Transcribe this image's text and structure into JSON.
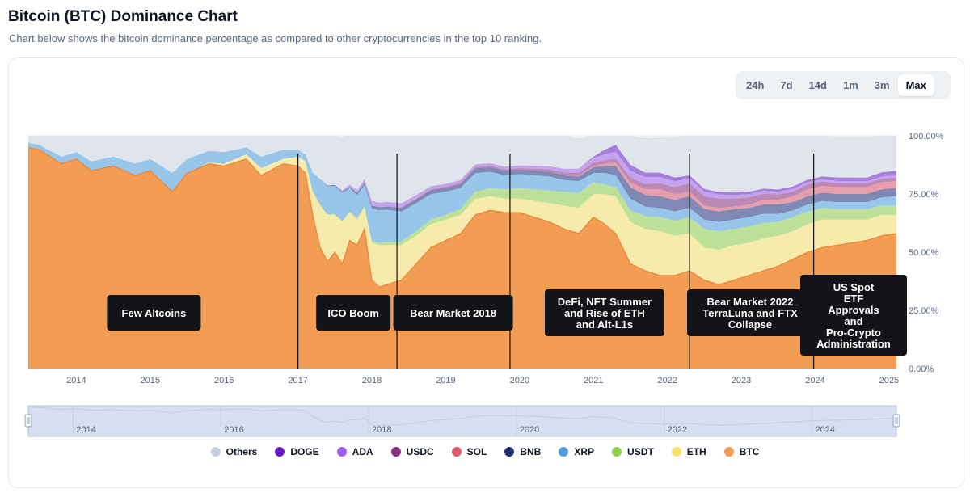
{
  "header": {
    "title": "Bitcoin (BTC) Dominance Chart",
    "subtitle": "Chart below shows the bitcoin dominance percentage as compared to other cryptocurrencies in the top 10 ranking."
  },
  "range_buttons": [
    {
      "label": "24h",
      "active": false
    },
    {
      "label": "7d",
      "active": false
    },
    {
      "label": "14d",
      "active": false
    },
    {
      "label": "1m",
      "active": false
    },
    {
      "label": "3m",
      "active": false
    },
    {
      "label": "Max",
      "active": true
    }
  ],
  "colors": {
    "Others": "#c7d0dc",
    "DOGE": "#6a1bc4",
    "ADA": "#a15fe8",
    "USDC": "#8e2f7e",
    "SOL": "#dc5a6c",
    "BNB": "#1f2f7a",
    "XRP": "#4c9ee0",
    "USDT": "#8fcf4a",
    "ETH": "#f7e16a",
    "BTC": "#f39c53"
  },
  "legend": [
    "Others",
    "DOGE",
    "ADA",
    "USDC",
    "SOL",
    "BNB",
    "XRP",
    "USDT",
    "ETH",
    "BTC"
  ],
  "navigator": {
    "labels": [
      "2014",
      "2016",
      "2018",
      "2020",
      "2022",
      "2024"
    ]
  },
  "chart_data": {
    "type": "area",
    "title": "Bitcoin (BTC) Dominance Chart",
    "stacked": true,
    "x_range": [
      2013.35,
      2025.1
    ],
    "ylim": [
      0,
      100
    ],
    "y_ticks": [
      "0.00%",
      "25.00%",
      "50.00%",
      "75.00%",
      "100.00%"
    ],
    "y_tick_values": [
      0,
      25,
      50,
      75,
      100
    ],
    "x_ticks": [
      "2014",
      "2015",
      "2016",
      "2017",
      "2018",
      "2019",
      "2020",
      "2021",
      "2022",
      "2023",
      "2024",
      "2025"
    ],
    "x_tick_values": [
      2014,
      2015,
      2016,
      2017,
      2018,
      2019,
      2020,
      2021,
      2022,
      2023,
      2024,
      2025
    ],
    "x": [
      2013.35,
      2013.5,
      2013.8,
      2014.0,
      2014.2,
      2014.5,
      2014.8,
      2015.0,
      2015.3,
      2015.5,
      2015.8,
      2016.0,
      2016.3,
      2016.5,
      2016.8,
      2017.0,
      2017.1,
      2017.2,
      2017.3,
      2017.4,
      2017.5,
      2017.6,
      2017.7,
      2017.8,
      2017.9,
      2018.0,
      2018.1,
      2018.2,
      2018.4,
      2018.6,
      2018.8,
      2019.0,
      2019.2,
      2019.4,
      2019.6,
      2019.8,
      2020.0,
      2020.2,
      2020.4,
      2020.6,
      2020.8,
      2021.0,
      2021.15,
      2021.3,
      2021.5,
      2021.7,
      2021.9,
      2022.1,
      2022.3,
      2022.5,
      2022.7,
      2022.9,
      2023.1,
      2023.3,
      2023.5,
      2023.7,
      2023.9,
      2024.1,
      2024.3,
      2024.5,
      2024.7,
      2024.9,
      2025.1
    ],
    "series": [
      {
        "name": "BTC",
        "values": [
          95,
          94,
          88,
          90,
          85,
          87,
          83,
          85,
          76,
          84,
          88,
          87,
          90,
          83,
          88,
          87,
          84,
          66,
          52,
          46,
          50,
          45,
          55,
          53,
          60,
          38,
          35,
          36,
          38,
          45,
          52,
          55,
          58,
          66,
          68,
          67,
          67,
          65,
          63,
          60,
          58,
          65,
          62,
          58,
          45,
          42,
          40,
          40,
          42,
          38,
          36,
          38,
          40,
          42,
          44,
          47,
          50,
          52,
          53,
          54,
          55,
          57,
          58
        ]
      },
      {
        "name": "ETH",
        "values": [
          0,
          0,
          0,
          0,
          0,
          0,
          0,
          0,
          0,
          0,
          0.5,
          1,
          2,
          3,
          2,
          4,
          5,
          10,
          18,
          20,
          16,
          18,
          12,
          11,
          9,
          16,
          18,
          17,
          15,
          12,
          10,
          9,
          8,
          7,
          6,
          6,
          6,
          7,
          8,
          10,
          11,
          10,
          13,
          16,
          18,
          18,
          19,
          17,
          16,
          14,
          15,
          15,
          14,
          14,
          13,
          12,
          12,
          12,
          11,
          10,
          9,
          9,
          8
        ]
      },
      {
        "name": "USDT",
        "values": [
          0,
          0,
          0,
          0,
          0,
          0,
          0,
          0,
          0,
          0,
          0,
          0,
          0,
          0,
          0,
          0,
          0,
          0.2,
          0.3,
          0.3,
          0.4,
          0.5,
          0.5,
          0.6,
          0.8,
          0.8,
          1,
          1.2,
          1.5,
          2,
          2,
          2,
          2.5,
          3,
          3.5,
          4,
          4.5,
          5,
          5.5,
          6,
          6.5,
          5,
          4,
          4,
          5,
          5.5,
          6,
          6.5,
          7,
          8,
          8,
          7,
          7,
          6.5,
          6,
          6,
          5.5,
          5,
          4.5,
          4.5,
          4.5,
          4,
          4
        ]
      },
      {
        "name": "XRP",
        "values": [
          2,
          2,
          3,
          3,
          4,
          4,
          5,
          5,
          8,
          6,
          5,
          5,
          3,
          5,
          4,
          3,
          3,
          8,
          11,
          12,
          12,
          12,
          10,
          10,
          9,
          14,
          14,
          14,
          13,
          12,
          11,
          10,
          9,
          8,
          7,
          6,
          6,
          6,
          6,
          5,
          5,
          4,
          5,
          5,
          5,
          4,
          4,
          4,
          4,
          4,
          4,
          4,
          4,
          4,
          3.5,
          3,
          3,
          3,
          3,
          3,
          3,
          3.5,
          4
        ]
      },
      {
        "name": "BNB",
        "values": [
          0,
          0,
          0,
          0,
          0,
          0,
          0,
          0,
          0,
          0,
          0,
          0,
          0,
          0,
          0,
          0,
          0,
          0,
          0,
          0.3,
          0.5,
          0.5,
          0.6,
          0.8,
          1,
          1.2,
          1.3,
          1.4,
          1.5,
          1.6,
          1.6,
          1.6,
          1.8,
          2,
          2,
          2,
          2,
          2,
          2,
          2,
          2,
          2.5,
          3,
          4,
          5,
          5,
          5,
          5,
          5,
          4.5,
          4.5,
          4.5,
          4,
          4,
          4,
          3.5,
          3.5,
          3.5,
          3.5,
          3.5,
          3.5,
          3.5,
          3.5
        ]
      },
      {
        "name": "SOL",
        "values": [
          0,
          0,
          0,
          0,
          0,
          0,
          0,
          0,
          0,
          0,
          0,
          0,
          0,
          0,
          0,
          0,
          0,
          0,
          0,
          0,
          0,
          0,
          0,
          0,
          0,
          0,
          0,
          0,
          0,
          0,
          0,
          0,
          0,
          0,
          0,
          0,
          0,
          0,
          0,
          0,
          0.2,
          0.5,
          1,
          1.5,
          2,
          2.5,
          3,
          2.5,
          2,
          1.5,
          1.5,
          1,
          1.5,
          2,
          2,
          2.5,
          3,
          3,
          3,
          3,
          3,
          3,
          3
        ]
      },
      {
        "name": "USDC",
        "values": [
          0,
          0,
          0,
          0,
          0,
          0,
          0,
          0,
          0,
          0,
          0,
          0,
          0,
          0,
          0,
          0,
          0,
          0,
          0,
          0,
          0,
          0,
          0,
          0,
          0,
          0,
          0,
          0,
          0.2,
          0.3,
          0.4,
          0.5,
          0.5,
          0.5,
          0.5,
          0.5,
          0.6,
          0.8,
          1,
          1.2,
          1.4,
          1.5,
          1.5,
          1.6,
          2,
          2.2,
          2.5,
          3,
          3.5,
          4,
          4,
          3.5,
          3,
          2.5,
          2.2,
          2,
          2,
          1.8,
          1.6,
          1.5,
          1.5,
          1.5,
          1.5
        ]
      },
      {
        "name": "ADA",
        "values": [
          0,
          0,
          0,
          0,
          0,
          0,
          0,
          0,
          0,
          0,
          0,
          0,
          0,
          0,
          0,
          0,
          0,
          0,
          0,
          0,
          0,
          0.5,
          1,
          1.2,
          1.5,
          2,
          2,
          2,
          1.8,
          1.6,
          1.4,
          1.2,
          1.2,
          1.2,
          1.2,
          1.2,
          1.2,
          1.3,
          1.4,
          1.6,
          1.8,
          2,
          2.5,
          3,
          3,
          3,
          2.8,
          2.5,
          2.2,
          2,
          1.8,
          1.6,
          1.4,
          1.3,
          1.2,
          1.2,
          1.1,
          1,
          1,
          1,
          1,
          1,
          1
        ]
      },
      {
        "name": "DOGE",
        "values": [
          0,
          0,
          0,
          0,
          0,
          0,
          0,
          0,
          0,
          0,
          0,
          0,
          0,
          0,
          0,
          0,
          0,
          0,
          0,
          0,
          0,
          0,
          0,
          0,
          0,
          0,
          0,
          0,
          0,
          0,
          0,
          0,
          0,
          0,
          0,
          0,
          0,
          0,
          0,
          0,
          0,
          0.5,
          2,
          3,
          2.5,
          2,
          1.8,
          1.5,
          1.3,
          1.2,
          1,
          1,
          1,
          1,
          1,
          1,
          1,
          1.2,
          1.5,
          1.5,
          1.5,
          1.8,
          2
        ]
      },
      {
        "name": "Others",
        "values": [
          3,
          4,
          9,
          7,
          11,
          9,
          12,
          10,
          16,
          10,
          6.5,
          7,
          5,
          9,
          6,
          6,
          8,
          15.8,
          18.7,
          21.4,
          21.1,
          23,
          20.9,
          23.4,
          18.7,
          28,
          28.7,
          28.4,
          30,
          25.5,
          22.6,
          20.7,
          20,
          12.3,
          11.8,
          13.3,
          12.7,
          12.9,
          13.1,
          14.2,
          13.1,
          9.5,
          6,
          3.9,
          12.5,
          14.8,
          15.1,
          17.5,
          17,
          24.8,
          26.2,
          27.4,
          26.1,
          24.7,
          23.1,
          21.8,
          19.4,
          17.5,
          17.4,
          17.5,
          17.5,
          16,
          15
        ]
      }
    ],
    "event_lines": [
      2017.0,
      2018.34,
      2019.87,
      2022.3,
      2023.98
    ],
    "annotations": [
      {
        "text": "Few Altcoins",
        "x": 2015.05
      },
      {
        "text": "ICO Boom",
        "x": 2017.75
      },
      {
        "text": "Bear Market 2018",
        "x": 2019.1
      },
      {
        "text": "DeFi, NFT Summer and Rise of ETH and Alt-L1s",
        "x": 2021.15
      },
      {
        "text": "Bear Market 2022 TerraLuna and FTX Collapse",
        "x": 2023.12
      },
      {
        "text": "US Spot ETF Approvals and Pro-Crypto Administration",
        "x": 2024.52
      }
    ]
  }
}
